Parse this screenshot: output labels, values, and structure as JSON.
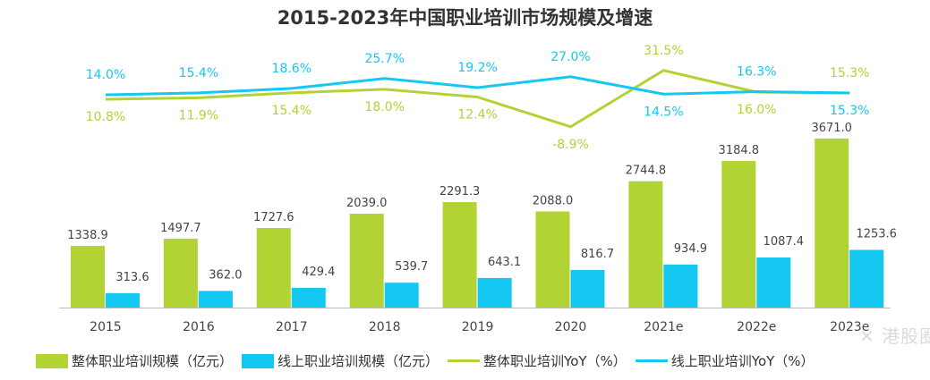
{
  "title": "2015-2023年中国职业培训市场规模及增速",
  "watermark": "港股圈",
  "chart_data": {
    "type": "bar+line",
    "title": "2015-2023年中国职业培训市场规模及增速",
    "categories": [
      "2015",
      "2016",
      "2017",
      "2018",
      "2019",
      "2020",
      "2021e",
      "2022e",
      "2023e"
    ],
    "series": [
      {
        "name": "整体职业培训规模（亿元）",
        "type": "bar",
        "color": "#b1d334",
        "values": [
          1338.9,
          1497.7,
          1727.6,
          2039.0,
          2291.3,
          2088.0,
          2744.8,
          3184.8,
          3671.0
        ]
      },
      {
        "name": "线上职业培训规模（亿元）",
        "type": "bar",
        "color": "#14c8f2",
        "values": [
          313.6,
          362.0,
          429.4,
          539.7,
          643.1,
          816.7,
          934.9,
          1087.4,
          1253.6
        ]
      },
      {
        "name": "整体职业培训YoY（%）",
        "type": "line",
        "color": "#b1d334",
        "values": [
          10.8,
          11.9,
          15.4,
          18.0,
          12.4,
          -8.9,
          31.5,
          16.0,
          15.3
        ]
      },
      {
        "name": "线上职业培训YoY（%）",
        "type": "line",
        "color": "#14c8f2",
        "values": [
          14.0,
          15.4,
          18.6,
          25.7,
          19.2,
          27.0,
          14.5,
          16.3,
          15.3
        ]
      }
    ],
    "bar_ylim": [
      0,
      3700
    ],
    "line_ylim": [
      -10,
      35
    ],
    "grid": false,
    "legend": "bottom"
  }
}
